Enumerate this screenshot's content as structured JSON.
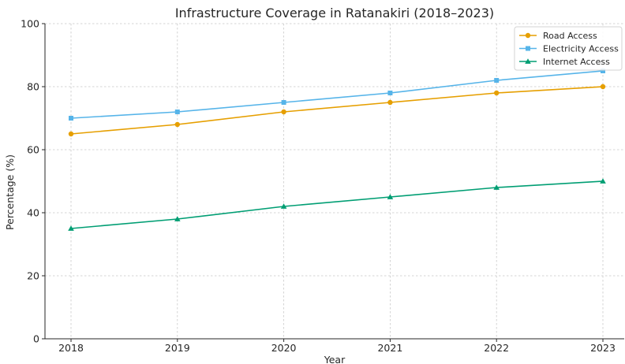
{
  "chart_data": {
    "type": "line",
    "title": "Infrastructure Coverage in Ratanakiri (2018–2023)",
    "xlabel": "Year",
    "ylabel": "Percentage (%)",
    "categories": [
      "2018",
      "2019",
      "2020",
      "2021",
      "2022",
      "2023"
    ],
    "ylim": [
      0,
      100
    ],
    "yticks": [
      0,
      20,
      40,
      60,
      80,
      100
    ],
    "grid": true,
    "legend_position": "top-right",
    "series": [
      {
        "name": "Road Access",
        "values": [
          65,
          68,
          72,
          75,
          78,
          80
        ],
        "color": "#E69F00",
        "marker": "circle"
      },
      {
        "name": "Electricity Access",
        "values": [
          70,
          72,
          75,
          78,
          82,
          85
        ],
        "color": "#56B4E9",
        "marker": "square"
      },
      {
        "name": "Internet Access",
        "values": [
          35,
          38,
          42,
          45,
          48,
          50
        ],
        "color": "#009E73",
        "marker": "triangle"
      }
    ]
  }
}
